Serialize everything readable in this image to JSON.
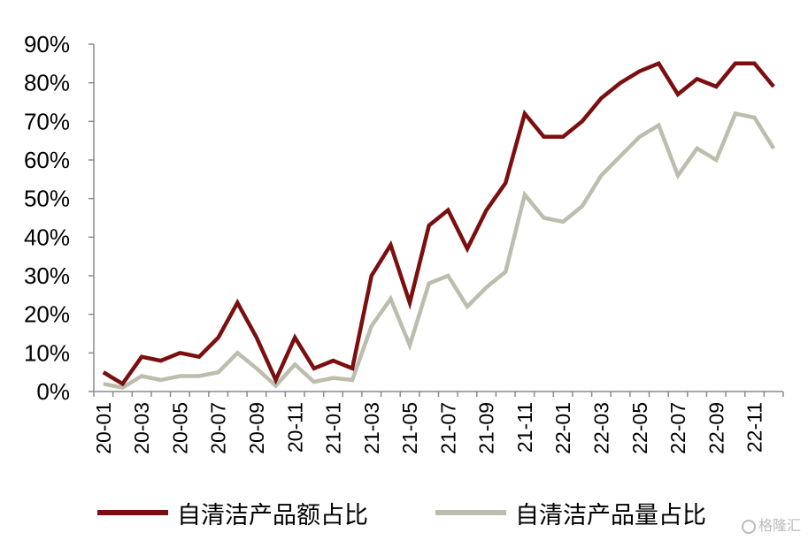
{
  "chart_data": {
    "type": "line",
    "x": [
      "20-01",
      "20-02",
      "20-03",
      "20-04",
      "20-05",
      "20-06",
      "20-07",
      "20-08",
      "20-09",
      "20-10",
      "20-11",
      "20-12",
      "21-01",
      "21-02",
      "21-03",
      "21-04",
      "21-05",
      "21-06",
      "21-07",
      "21-08",
      "21-09",
      "21-10",
      "21-11",
      "21-12",
      "22-01",
      "22-02",
      "22-03",
      "22-04",
      "22-05",
      "22-06",
      "22-07",
      "22-08",
      "22-09",
      "22-10",
      "22-11",
      "22-12"
    ],
    "xticklabels": [
      "20-01",
      "20-03",
      "20-05",
      "20-07",
      "20-09",
      "20-11",
      "21-01",
      "21-03",
      "21-05",
      "21-07",
      "21-09",
      "21-11",
      "22-01",
      "22-03",
      "22-05",
      "22-07",
      "22-09",
      "22-11"
    ],
    "yticklabels": [
      "0%",
      "10%",
      "20%",
      "30%",
      "40%",
      "50%",
      "60%",
      "70%",
      "80%",
      "90%"
    ],
    "ylim": [
      0,
      90
    ],
    "grid": false,
    "legend_position": "bottom",
    "series": [
      {
        "name": "自清洁产品额占比",
        "color": "#7b0f0f",
        "values": [
          5,
          2,
          9,
          8,
          10,
          9,
          14,
          23,
          14,
          3,
          14,
          6,
          8,
          6,
          30,
          38,
          23,
          43,
          47,
          37,
          47,
          54,
          72,
          66,
          66,
          70,
          76,
          80,
          83,
          85,
          77,
          81,
          79,
          85,
          85,
          79
        ]
      },
      {
        "name": "自清洁产品量占比",
        "color": "#bdbdae",
        "values": [
          2,
          1,
          4,
          3,
          4,
          4,
          5,
          10,
          6,
          1.5,
          7,
          2.5,
          3.5,
          3,
          17,
          24,
          12,
          28,
          30,
          22,
          27,
          31,
          51,
          45,
          44,
          48,
          56,
          61,
          66,
          69,
          56,
          63,
          60,
          72,
          71,
          63
        ]
      }
    ]
  },
  "watermark": {
    "text": "格隆汇"
  }
}
